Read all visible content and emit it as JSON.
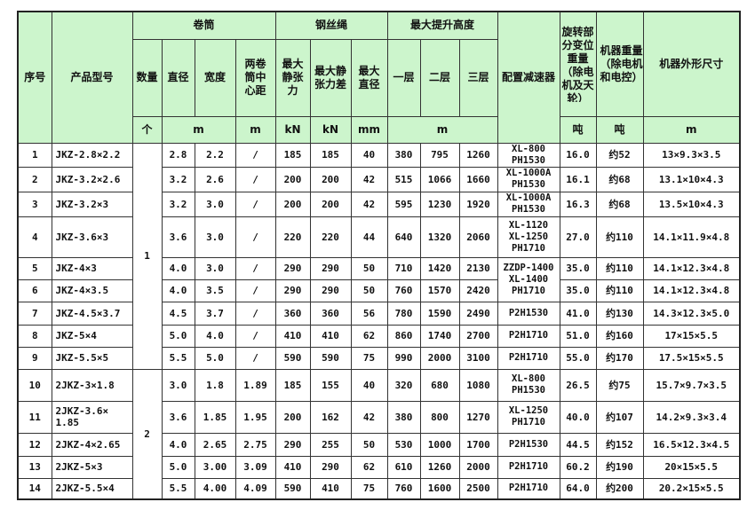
{
  "header": {
    "seq": "序号",
    "model": "产品型号",
    "drum": "卷筒",
    "rope": "钢丝绳",
    "lift": "最大提升高度",
    "reducer": "配置减速器",
    "rot_weight": "旋转部分变位重量（除电机及天轮）",
    "weight": "机器重量（除电机和电控）",
    "dims": "机器外形尺寸",
    "drum_count": "数量",
    "drum_dia": "直径",
    "drum_width": "宽度",
    "drum_center": "两卷筒中心距",
    "rope_tension": "最大静张力",
    "rope_diff": "最大静张力差",
    "rope_dia": "最大直径",
    "layer1": "一层",
    "layer2": "二层",
    "layer3": "三层",
    "unit_count": "个",
    "unit_drum_m": "m",
    "unit_center": "m",
    "unit_tension": "kN",
    "unit_diff": "kN",
    "unit_dia": "mm",
    "unit_lift": "m",
    "unit_rot": "吨",
    "unit_weight": "吨",
    "unit_dims": "m"
  },
  "groups": [
    {
      "count": "1",
      "rows": [
        {
          "seq": "1",
          "model": "JKZ-2.8×2.2",
          "dia": "2.8",
          "width": "2.2",
          "center": "/",
          "tension": "185",
          "diff": "185",
          "rope": "40",
          "l1": "380",
          "l2": "795",
          "l3": "1260",
          "reducer": "XL-800 PH1530",
          "rot": "16.0",
          "weight": "约52",
          "dims": "13×9.3×3.5"
        },
        {
          "seq": "2",
          "model": "JKZ-3.2×2.6",
          "dia": "3.2",
          "width": "2.6",
          "center": "/",
          "tension": "200",
          "diff": "200",
          "rope": "42",
          "l1": "515",
          "l2": "1066",
          "l3": "1660",
          "reducer": "XL-1000A PH1530",
          "rot": "16.1",
          "weight": "约68",
          "dims": "13.1×10×4.3"
        },
        {
          "seq": "3",
          "model": "JKZ-3.2×3",
          "dia": "3.2",
          "width": "3.0",
          "center": "/",
          "tension": "200",
          "diff": "200",
          "rope": "42",
          "l1": "595",
          "l2": "1230",
          "l3": "1920",
          "reducer": "XL-1000A PH1530",
          "rot": "16.3",
          "weight": "约68",
          "dims": "13.5×10×4.3"
        },
        {
          "seq": "4",
          "model": "JKZ-3.6×3",
          "dia": "3.6",
          "width": "3.0",
          "center": "/",
          "tension": "220",
          "diff": "220",
          "rope": "44",
          "l1": "640",
          "l2": "1320",
          "l3": "2060",
          "reducer": "XL-1120 XL-1250 PH1710",
          "rot": "27.0",
          "weight": "约110",
          "dims": "14.1×11.9×4.8"
        },
        {
          "seq": "5",
          "model": "JKZ-4×3",
          "dia": "4.0",
          "width": "3.0",
          "center": "/",
          "tension": "290",
          "diff": "290",
          "rope": "50",
          "l1": "710",
          "l2": "1420",
          "l3": "2130",
          "reducer": "ZZDP-1400 XL-1400 PH1710",
          "reducer_span": 2,
          "rot": "35.0",
          "weight": "约110",
          "dims": "14.1×12.3×4.8"
        },
        {
          "seq": "6",
          "model": "JKZ-4×3.5",
          "dia": "4.0",
          "width": "3.5",
          "center": "/",
          "tension": "290",
          "diff": "290",
          "rope": "50",
          "l1": "760",
          "l2": "1570",
          "l3": "2420",
          "rot": "35.0",
          "weight": "约110",
          "dims": "14.1×12.3×4.8"
        },
        {
          "seq": "7",
          "model": "JKZ-4.5×3.7",
          "dia": "4.5",
          "width": "3.7",
          "center": "/",
          "tension": "360",
          "diff": "360",
          "rope": "56",
          "l1": "780",
          "l2": "1590",
          "l3": "2490",
          "reducer": "P2H1530",
          "rot": "41.0",
          "weight": "约130",
          "dims": "14.3×12.3×5.0"
        },
        {
          "seq": "8",
          "model": "JKZ-5×4",
          "dia": "5.0",
          "width": "4.0",
          "center": "/",
          "tension": "410",
          "diff": "410",
          "rope": "62",
          "l1": "860",
          "l2": "1740",
          "l3": "2700",
          "reducer": "P2H1710",
          "rot": "51.0",
          "weight": "约160",
          "dims": "17×15×5.5"
        },
        {
          "seq": "9",
          "model": "JKZ-5.5×5",
          "dia": "5.5",
          "width": "5.0",
          "center": "/",
          "tension": "590",
          "diff": "590",
          "rope": "75",
          "l1": "990",
          "l2": "2000",
          "l3": "3100",
          "reducer": "P2H1710",
          "rot": "55.0",
          "weight": "约170",
          "dims": "17.5×15×5.5"
        }
      ]
    },
    {
      "count": "2",
      "rows": [
        {
          "seq": "10",
          "model": "2JKZ-3×1.8",
          "dia": "3.0",
          "width": "1.8",
          "center": "1.89",
          "tension": "185",
          "diff": "155",
          "rope": "40",
          "l1": "320",
          "l2": "680",
          "l3": "1080",
          "reducer": "XL-800 PH1530",
          "rot": "26.5",
          "weight": "约75",
          "dims": "15.7×9.7×3.5"
        },
        {
          "seq": "11",
          "model": "2JKZ-3.6× 1.85",
          "dia": "3.6",
          "width": "1.85",
          "center": "1.95",
          "tension": "200",
          "diff": "162",
          "rope": "42",
          "l1": "380",
          "l2": "800",
          "l3": "1270",
          "reducer": "XL-1250 PH1710",
          "rot": "40.0",
          "weight": "约107",
          "dims": "14.2×9.3×3.4"
        },
        {
          "seq": "12",
          "model": "2JKZ-4×2.65",
          "dia": "4.0",
          "width": "2.65",
          "center": "2.75",
          "tension": "290",
          "diff": "255",
          "rope": "50",
          "l1": "530",
          "l2": "1000",
          "l3": "1700",
          "reducer": "P2H1530",
          "rot": "44.5",
          "weight": "约152",
          "dims": "16.5×12.3×4.5"
        },
        {
          "seq": "13",
          "model": "2JKZ-5×3",
          "dia": "5.0",
          "width": "3.00",
          "center": "3.09",
          "tension": "410",
          "diff": "290",
          "rope": "62",
          "l1": "610",
          "l2": "1260",
          "l3": "2000",
          "reducer": "P2H1710",
          "rot": "60.2",
          "weight": "约190",
          "dims": "20×15×5.5"
        },
        {
          "seq": "14",
          "model": "2JKZ-5.5×4",
          "dia": "5.5",
          "width": "4.00",
          "center": "4.09",
          "tension": "590",
          "diff": "410",
          "rope": "75",
          "l1": "760",
          "l2": "1600",
          "l3": "2500",
          "reducer": "P2H1710",
          "rot": "64.0",
          "weight": "约200",
          "dims": "20.2×15×5.5"
        }
      ]
    }
  ]
}
